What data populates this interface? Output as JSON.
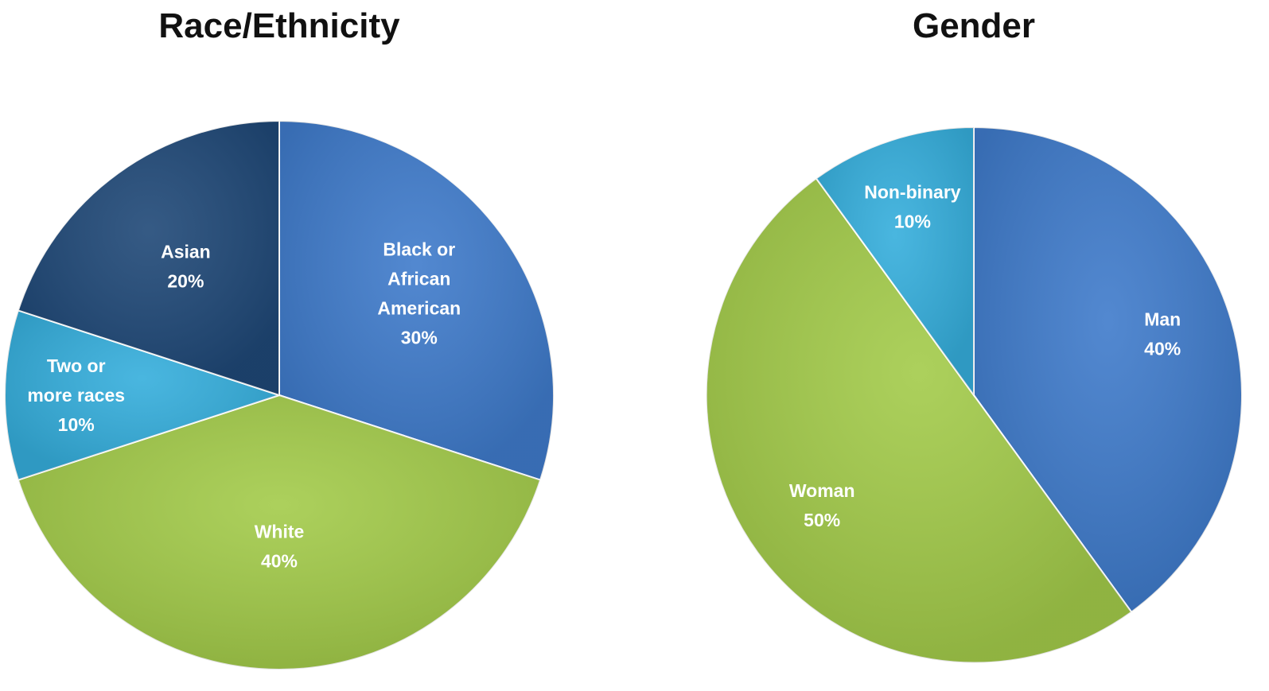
{
  "chart_data": [
    {
      "type": "pie",
      "title": "Race/Ethnicity",
      "slices": [
        {
          "label": [
            "Black or",
            "African",
            "American"
          ],
          "value": 30,
          "value_label": "30%",
          "color": "#3F7BCB"
        },
        {
          "label": [
            "White"
          ],
          "value": 40,
          "value_label": "40%",
          "color": "#A3CB4A"
        },
        {
          "label": [
            "Two or",
            "more races"
          ],
          "value": 10,
          "value_label": "10%",
          "color": "#35AEDC"
        },
        {
          "label": [
            "Asian"
          ],
          "value": 20,
          "value_label": "20%",
          "color": "#1F4877"
        }
      ]
    },
    {
      "type": "pie",
      "title": "Gender",
      "slices": [
        {
          "label": [
            "Man"
          ],
          "value": 40,
          "value_label": "40%",
          "color": "#3F7BCB"
        },
        {
          "label": [
            "Woman"
          ],
          "value": 50,
          "value_label": "50%",
          "color": "#A3CB4A"
        },
        {
          "label": [
            "Non-binary"
          ],
          "value": 10,
          "value_label": "10%",
          "color": "#35AEDC"
        }
      ]
    }
  ]
}
